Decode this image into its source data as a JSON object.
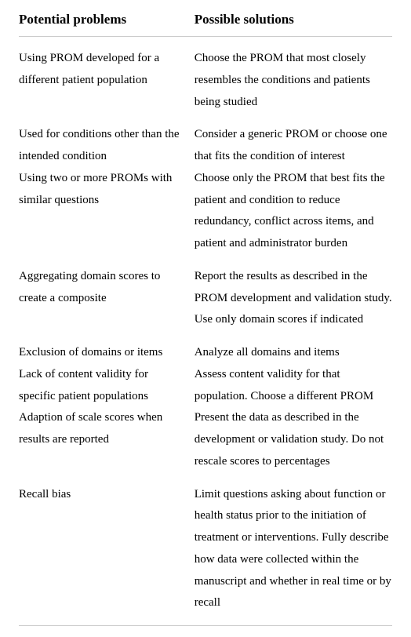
{
  "headers": {
    "problems": "Potential problems",
    "solutions": "Possible solutions"
  },
  "rows": [
    {
      "problem": "Using PROM developed for a different patient population",
      "solution": "Choose the PROM that most closely resembles the conditions and patients being studied"
    },
    {
      "problem": "Used for conditions other than the intended condition",
      "solution": "Consider a generic PROM or choose one that fits the condition of interest"
    },
    {
      "problem": "Using two or more PROMs with similar questions",
      "solution": "Choose only the PROM that best fits the patient and condition to reduce redundancy, conflict across items, and patient and administrator burden"
    },
    {
      "problem": "Aggregating domain scores to create a composite",
      "solution": "Report the results as described in the PROM development and validation study. Use only domain scores if indicated"
    },
    {
      "problem": "Exclusion of domains or items",
      "solution": "Analyze all domains and items"
    },
    {
      "problem": "Lack of content validity for specific patient populations",
      "solution": "Assess content validity for that population. Choose a different PROM"
    },
    {
      "problem": "Adaption of scale scores when results are reported",
      "solution": "Present the data as described in the development or validation study. Do not rescale scores to percentages"
    },
    {
      "problem": "Recall bias",
      "solution": "Limit questions asking about function or health status prior to the initiation of treatment or interventions. Fully describe how data were collected within the manuscript and whether in real time or by recall"
    }
  ]
}
